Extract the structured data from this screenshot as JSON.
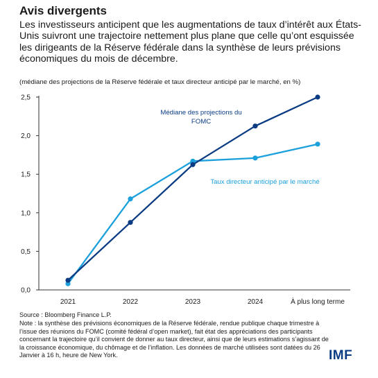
{
  "title": "Avis divergents",
  "subtitle": "Les investisseurs anticipent que les augmentations de taux d’intérêt aux États-Unis suivront une trajectoire nettement plus plane que celle qu’ont esquissée les dirigeants de la Réserve fédérale dans la synthèse de leurs prévisions économiques du mois de décembre.",
  "units": "(médiane des projections de la Réserve fédérale et taux directeur anticipé par le marché, en %)",
  "source": "Source : Bloomberg Finance L.P.",
  "note": "Note : la synthèse des prévisions économiques de la Réserve fédérale, rendue publique chaque trimestre à l’issue des réunions du FOMC (comité fédéral d’open market), fait état des appréciations des participants concernant la trajectoire qu’il convient de donner au taux directeur, ainsi que de leurs estimations s’agissant de la croissance économique, du chômage et de l’inflation. Les données de marché utilisées sont datées du 26 Janvier à 16 h, heure de New York.",
  "logo": "IMF",
  "colors": {
    "fomc": "#0b3c83",
    "market": "#1ba0dc",
    "axis": "#333333"
  },
  "chart_data": {
    "type": "line",
    "categories": [
      "2021",
      "2022",
      "2023",
      "2024",
      "À plus long terme"
    ],
    "ylim": [
      0,
      2.5
    ],
    "yticks": [
      "0,0",
      "0,5",
      "1,0",
      "1,5",
      "2,0",
      "2,5"
    ],
    "yticks_values": [
      0,
      0.5,
      1.0,
      1.5,
      2.0,
      2.5
    ],
    "grid": false,
    "series": [
      {
        "name": "Médiane des projections du FOMC",
        "name_lines": [
          "Médiane des projections du",
          "FOMC"
        ],
        "color": "#0b3c83",
        "values": [
          0.125,
          0.875,
          1.625,
          2.125,
          2.5
        ]
      },
      {
        "name": "Taux directeur anticipé par le marché",
        "name_lines": [
          "Taux directeur anticipé par le marché"
        ],
        "color": "#1ba0dc",
        "values": [
          0.08,
          1.18,
          1.67,
          1.71,
          1.89
        ]
      }
    ]
  }
}
